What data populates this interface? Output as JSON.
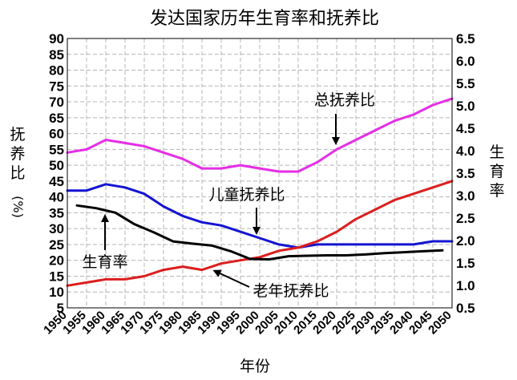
{
  "chart_data": {
    "type": "line",
    "title": "发达国家历年生育率和抚养比",
    "xlabel": "年份",
    "ylabel_left": [
      "抚",
      "养",
      "比",
      "(%)"
    ],
    "ylabel_right": [
      "生",
      "育",
      "率"
    ],
    "x": [
      1950,
      1955,
      1960,
      1965,
      1970,
      1975,
      1980,
      1985,
      1990,
      1995,
      2000,
      2005,
      2010,
      2015,
      2020,
      2025,
      2030,
      2035,
      2040,
      2045,
      2050
    ],
    "x_tick_labels": [
      "1950",
      "1955",
      "1960",
      "1965",
      "1970",
      "1975",
      "1980",
      "1985",
      "1990",
      "1995",
      "2000",
      "2005",
      "2010",
      "2015",
      "2020",
      "2025",
      "2030",
      "2035",
      "2040",
      "2045",
      "2050"
    ],
    "ylim_left": [
      5,
      90
    ],
    "yticks_left": [
      "90",
      "85",
      "80",
      "75",
      "70",
      "65",
      "60",
      "55",
      "50",
      "45",
      "40",
      "35",
      "30",
      "25",
      "20",
      "15",
      "10",
      "5"
    ],
    "ylim_right": [
      0.5,
      6.5
    ],
    "yticks_right": [
      "6.5",
      "6.0",
      "5.5",
      "5.0",
      "4.5",
      "4.0",
      "3.5",
      "3.0",
      "2.5",
      "2.0",
      "1.5",
      "1.0",
      "0.5"
    ],
    "grid": true,
    "series": [
      {
        "name": "总抚养比",
        "axis": "left",
        "color": "#e62ee6",
        "values": [
          54,
          55,
          58,
          57,
          56,
          54,
          52,
          49,
          49,
          50,
          49,
          48,
          48,
          51,
          55,
          58,
          61,
          64,
          66,
          69,
          71
        ]
      },
      {
        "name": "儿童抚养比",
        "axis": "left",
        "color": "#1414d2",
        "values": [
          42,
          42,
          44,
          43,
          41,
          37,
          34,
          32,
          31,
          29,
          27,
          25,
          24,
          25,
          25,
          25,
          25,
          25,
          25,
          26,
          26
        ]
      },
      {
        "name": "老年抚养比",
        "axis": "left",
        "color": "#dc1e1e",
        "values": [
          12,
          13,
          14,
          14,
          15,
          17,
          18,
          17,
          19,
          20,
          21,
          23,
          24,
          26,
          29,
          33,
          36,
          39,
          41,
          43,
          45
        ]
      },
      {
        "name": "生育率",
        "axis": "right",
        "color": "#000000",
        "x": [
          1952.5,
          1957.5,
          1962.5,
          1967.5,
          1972.5,
          1977.5,
          1982.5,
          1987.5,
          1992.5,
          1997.5,
          2002.5,
          2007.5,
          2012.5,
          2017.5,
          2022.5,
          2027.5,
          2032.5,
          2037.5,
          2042.5,
          2047.5
        ],
        "values": [
          2.78,
          2.72,
          2.62,
          2.36,
          2.18,
          1.98,
          1.93,
          1.89,
          1.76,
          1.59,
          1.58,
          1.65,
          1.66,
          1.67,
          1.67,
          1.69,
          1.72,
          1.74,
          1.76,
          1.78
        ]
      }
    ],
    "annotations": [
      {
        "text": "总抚养比",
        "target_series": "总抚养比"
      },
      {
        "text": "儿童抚养比",
        "target_series": "儿童抚养比"
      },
      {
        "text": "生育率",
        "target_series": "生育率"
      },
      {
        "text": "老年抚养比",
        "target_series": "老年抚养比"
      }
    ]
  }
}
